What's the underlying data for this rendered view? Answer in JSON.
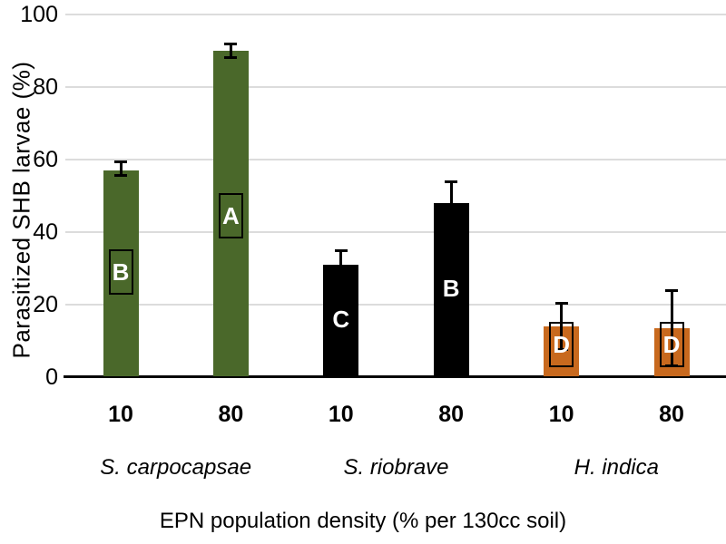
{
  "chart_data": {
    "type": "bar",
    "title": "",
    "ylabel": "Parasitized SHB larvae (%)",
    "xlabel": "EPN population density (% per 130cc soil)",
    "ylim": [
      0,
      100
    ],
    "yticks": [
      0,
      20,
      40,
      60,
      80,
      100
    ],
    "grid": "horizontal-light-gray",
    "legend": "none",
    "categories_per_group": [
      "10",
      "80"
    ],
    "groups": [
      {
        "species": "S. carpocapsae",
        "color": "#4a682a",
        "bars": [
          {
            "density": "10",
            "value": 57,
            "err_up": 2.5,
            "err_down": 1.5,
            "letter": "B",
            "letter_boxed": true,
            "letter_v": 29
          },
          {
            "density": "80",
            "value": 90,
            "err_up": 2,
            "err_down": 2,
            "letter": "A",
            "letter_boxed": true,
            "letter_v": 44.5
          }
        ]
      },
      {
        "species": "S. riobrave",
        "color": "#000000",
        "bars": [
          {
            "density": "10",
            "value": 31,
            "err_up": 4,
            "err_down": 4,
            "letter": "C",
            "letter_boxed": false,
            "letter_v": 16
          },
          {
            "density": "80",
            "value": 48,
            "err_up": 6,
            "err_down": 6,
            "letter": "B",
            "letter_boxed": false,
            "letter_v": 24.5
          }
        ]
      },
      {
        "species": "H. indica",
        "color": "#c8691e",
        "bars": [
          {
            "density": "10",
            "value": 14,
            "err_up": 6.5,
            "err_down": 6.5,
            "letter": "D",
            "letter_boxed": true,
            "letter_v": 9
          },
          {
            "density": "80",
            "value": 13.5,
            "err_up": 10.5,
            "err_down": 10.5,
            "letter": "D",
            "letter_boxed": true,
            "letter_v": 9
          }
        ]
      }
    ],
    "colors": {
      "grid": "#dcdcdc",
      "axis": "#000000",
      "letter_text": "#ffffff",
      "letter_box_border": "#000000",
      "background": "#ffffff"
    }
  }
}
